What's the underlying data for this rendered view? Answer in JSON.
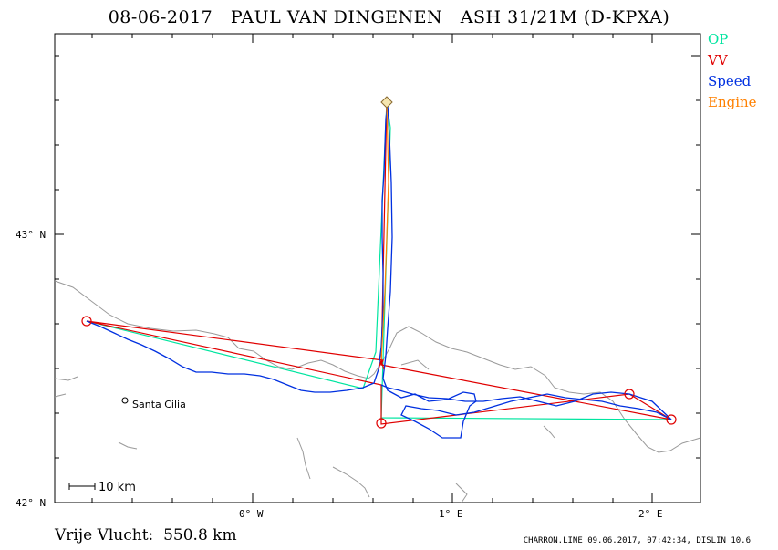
{
  "header": {
    "date": "08-06-2017",
    "pilot": "PAUL VAN DINGENEN",
    "glider": "ASH 31/21M (D-KPXA)"
  },
  "legend": [
    {
      "label": "OP",
      "color": "#00e5a0"
    },
    {
      "label": "VV",
      "color": "#e00000"
    },
    {
      "label": "Speed",
      "color": "#0030e0"
    },
    {
      "label": "Engine",
      "color": "#ff8000"
    }
  ],
  "axes": {
    "y_labels": [
      {
        "text": "43° N",
        "lat": 43
      },
      {
        "text": "42° N",
        "lat": 42
      }
    ],
    "x_labels": [
      {
        "text": "0° W",
        "lon": 0
      },
      {
        "text": "1° E",
        "lon": 1
      },
      {
        "text": "2° E",
        "lon": 2
      }
    ]
  },
  "place": {
    "name": "Santa Cilia"
  },
  "scale_bar": {
    "label": "10 km"
  },
  "distance": {
    "label": "Vrije Vlucht:",
    "value": "550.8 km"
  },
  "footer": "CHARRON.LINE 09.06.2017, 07:42:34, DISLIN 10.6"
}
